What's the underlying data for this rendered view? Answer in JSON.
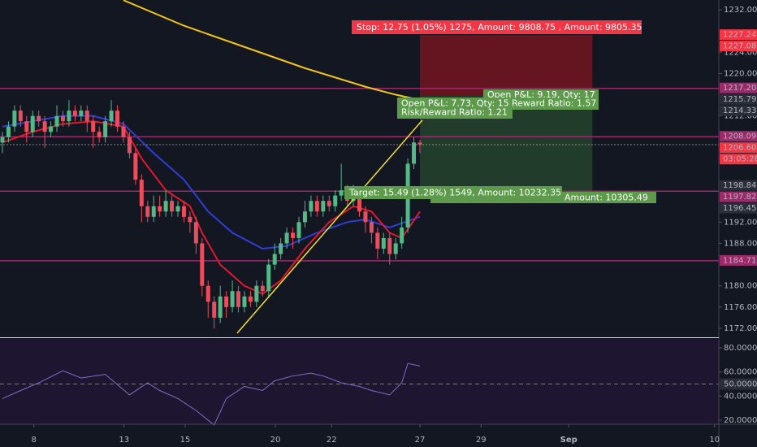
{
  "chart_data": {
    "type": "candlestick",
    "xlim": [
      -0.4,
      118.4
    ],
    "ylim": [
      1170.31,
      1233.84
    ],
    "color_up": "#53b987",
    "color_down": "#eb4d5c",
    "open": [
      1207,
      1208,
      1210,
      1213,
      1211,
      1209,
      1212,
      1211,
      1209,
      1210,
      1212,
      1211,
      1213,
      1212,
      1213,
      1211,
      1209,
      1208,
      1211,
      1213,
      1210,
      1208,
      1205,
      1200,
      1195,
      1193,
      1195,
      1194,
      1196,
      1194,
      1195,
      1193,
      1192,
      1188,
      1180,
      1177,
      1174,
      1178,
      1176,
      1179,
      1176,
      1178,
      1177,
      1180,
      1179,
      1184,
      1186,
      1188,
      1190,
      1189,
      1192,
      1194,
      1196,
      1194,
      1196,
      1195,
      1197,
      1198,
      1196,
      1197,
      1194,
      1192,
      1190,
      1187,
      1189,
      1186,
      1188,
      1191,
      1203,
      1207
    ],
    "high": [
      1209,
      1211,
      1214,
      1214,
      1212,
      1213,
      1213,
      1212,
      1211,
      1214,
      1213,
      1215,
      1214,
      1214,
      1214,
      1212,
      1210,
      1212,
      1215,
      1214,
      1211,
      1209,
      1206,
      1201,
      1196,
      1197,
      1197,
      1198,
      1197,
      1196,
      1196,
      1194,
      1193,
      1189,
      1181,
      1178,
      1180,
      1179,
      1181,
      1180,
      1179,
      1179,
      1181,
      1181,
      1185,
      1188,
      1189,
      1191,
      1191,
      1193,
      1196,
      1197,
      1197,
      1197,
      1197,
      1198,
      1203,
      1199,
      1199,
      1198,
      1195,
      1193,
      1191,
      1190,
      1190,
      1189,
      1193,
      1204,
      1208,
      1207.5
    ],
    "low": [
      1205,
      1207,
      1209,
      1210,
      1207,
      1208,
      1210,
      1206,
      1208,
      1209,
      1210,
      1210,
      1211,
      1211,
      1209,
      1206,
      1207,
      1207,
      1210,
      1209,
      1207,
      1204,
      1199,
      1192,
      1192,
      1192,
      1193,
      1193,
      1193,
      1193,
      1192,
      1190,
      1186,
      1178,
      1174,
      1172,
      1173,
      1174,
      1175,
      1175,
      1175,
      1176,
      1176,
      1178,
      1178,
      1183,
      1185,
      1187,
      1187,
      1188,
      1191,
      1193,
      1193,
      1193,
      1194,
      1194,
      1196,
      1195,
      1195,
      1193,
      1190,
      1188,
      1185,
      1186,
      1184,
      1185,
      1187,
      1190,
      1202,
      1205
    ],
    "close": [
      1208,
      1210,
      1213,
      1211,
      1209,
      1212,
      1211,
      1209,
      1210,
      1212,
      1211,
      1213,
      1212,
      1213,
      1211,
      1209,
      1208,
      1211,
      1213,
      1210,
      1208,
      1205,
      1200,
      1195,
      1193,
      1195,
      1194,
      1196,
      1194,
      1195,
      1193,
      1192,
      1188,
      1180,
      1177,
      1174,
      1178,
      1176,
      1179,
      1176,
      1178,
      1177,
      1180,
      1179,
      1184,
      1186,
      1188,
      1190,
      1189,
      1192,
      1194,
      1196,
      1194,
      1196,
      1195,
      1197,
      1198,
      1196,
      1197,
      1194,
      1192,
      1190,
      1187,
      1189,
      1186,
      1188,
      1191,
      1203,
      1207,
      1206.6
    ],
    "moving_averages": [
      {
        "color": "#f5c518",
        "x": [
          20,
          30,
          40,
          50,
          60,
          65,
          69
        ],
        "values": [
          1233.8,
          1229,
          1225,
          1221,
          1217.5,
          1216,
          1215
        ]
      },
      {
        "color": "#2f3fd6",
        "x": [
          0,
          5,
          10,
          15,
          20,
          25,
          30,
          34,
          38,
          43,
          47,
          52,
          57,
          60,
          64,
          69
        ],
        "values": [
          1210,
          1211,
          1212,
          1212,
          1210.5,
          1205,
          1200,
          1194,
          1190,
          1187,
          1187.5,
          1190,
          1192,
          1192.5,
          1191,
          1193
        ]
      },
      {
        "color": "#e3182d",
        "x": [
          0,
          5,
          10,
          15,
          20,
          23,
          27,
          31,
          33,
          36,
          40,
          43,
          46,
          50,
          54,
          58,
          61,
          64,
          66,
          69
        ],
        "values": [
          1207,
          1209,
          1210.5,
          1211,
          1210,
          1204,
          1198,
          1195,
          1190,
          1184,
          1180,
          1178.5,
          1181,
          1187,
          1192,
          1195,
          1194,
          1190,
          1189,
          1194
        ]
      }
    ],
    "trendline": {
      "color": "#f0e130",
      "x": [
        38.8,
        69.4
      ],
      "values": [
        1171.1,
        1211.2
      ]
    },
    "positions": [
      {
        "x": [
          69,
          97.5
        ],
        "top": 1227.24,
        "bottom": 1215.79,
        "color": "rgba(200,20,30,0.45)"
      },
      {
        "x": [
          69,
          97.5
        ],
        "top": 1215.79,
        "bottom": 1197.82,
        "color": "rgba(60,130,60,0.35)"
      }
    ],
    "yticks": [
      {
        "value": 1232,
        "label": "1232.00"
      },
      {
        "value": 1224,
        "label": "1224.00"
      },
      {
        "value": 1220,
        "label": "1220.00"
      },
      {
        "value": 1212,
        "label": "1212.00"
      },
      {
        "value": 1192,
        "label": "1192.00"
      },
      {
        "value": 1188,
        "label": "1188.00"
      },
      {
        "value": 1180,
        "label": "1180.00"
      },
      {
        "value": 1176,
        "label": "1176.00"
      },
      {
        "value": 1172,
        "label": "1172.00"
      }
    ],
    "price_tags": [
      {
        "value": 1227.24,
        "label": "1227.24",
        "color": "#f23645",
        "line": false
      },
      {
        "value": 1227.08,
        "label": "1227.08",
        "color": "#f23645",
        "line": false
      },
      {
        "value": 1217.2,
        "label": "1217.20",
        "color": "#9c2a6b",
        "line": true
      },
      {
        "value": 1215.79,
        "label": "1215.79",
        "color": "#2a2e39",
        "line": false
      },
      {
        "value": 1214.33,
        "label": "1214.33",
        "color": "#2a2e39",
        "line": false
      },
      {
        "value": 1208.09,
        "label": "1208.09",
        "color": "#9c2a6b",
        "line": true
      },
      {
        "value": 1206.6,
        "label": "1206.60",
        "color": "#f23645",
        "line": false,
        "countdown": "03:05:28"
      },
      {
        "value": 1198.84,
        "label": "1198.84",
        "color": "#2a2e39",
        "line": false
      },
      {
        "value": 1197.82,
        "label": "1197.82",
        "color": "#9c2a6b",
        "line": true
      },
      {
        "value": 1196.45,
        "label": "1196.45",
        "color": "#2a2e39",
        "line": false
      },
      {
        "value": 1184.71,
        "label": "1184.71",
        "color": "#9c2a6b",
        "line": true
      }
    ],
    "xticks": [
      {
        "value": 5.2,
        "label": "8"
      },
      {
        "value": 20.1,
        "label": "13"
      },
      {
        "value": 30.2,
        "label": "15"
      },
      {
        "value": 45.1,
        "label": "20"
      },
      {
        "value": 54.4,
        "label": "22"
      },
      {
        "value": 69,
        "label": "27"
      },
      {
        "value": 79.1,
        "label": "29"
      },
      {
        "value": 93.6,
        "label": "Sep"
      },
      {
        "value": 117.7,
        "label": "10"
      }
    ],
    "annotations": {
      "stop": "Stop: 12.75 (1.05%) 1275, Amount: 9808.75 , Amount: 9805.35",
      "pnl_2": "Open P&L: 9.19, Qty: 17",
      "ratio_2": "Reward Ratio: 1.57",
      "pnl_1": "Open P&L: 7.73, Qty: 15",
      "ratio_1": "Risk/Reward Ratio: 1.21",
      "target_1": "Target: 15.49 (1.28%) 1549, Amount: 10232.35",
      "target_2": "Amount: 10305.49"
    },
    "rsi": {
      "color": "#7c6fc4",
      "ylim": [
        16.63,
        86.74
      ],
      "x": [
        0,
        3,
        6,
        10,
        13,
        17,
        21,
        24,
        26,
        29,
        32,
        35,
        37,
        40,
        43,
        45,
        48,
        51,
        53,
        56,
        59,
        61,
        64,
        66,
        67,
        69
      ],
      "values": [
        37.9,
        44.6,
        51,
        61,
        55,
        58,
        41,
        51,
        44.6,
        38,
        28,
        16,
        38,
        48,
        44.6,
        52.7,
        56.7,
        59,
        56.7,
        51,
        48,
        44.6,
        41,
        51,
        67,
        65
      ],
      "yticks": [
        {
          "value": 80,
          "label": "80.0000"
        },
        {
          "value": 60,
          "label": "60.0000"
        },
        {
          "value": 40,
          "label": "40.0000"
        },
        {
          "value": 20,
          "label": "20.0000"
        }
      ],
      "tag": {
        "value": 50,
        "label": "50.0000"
      }
    }
  }
}
